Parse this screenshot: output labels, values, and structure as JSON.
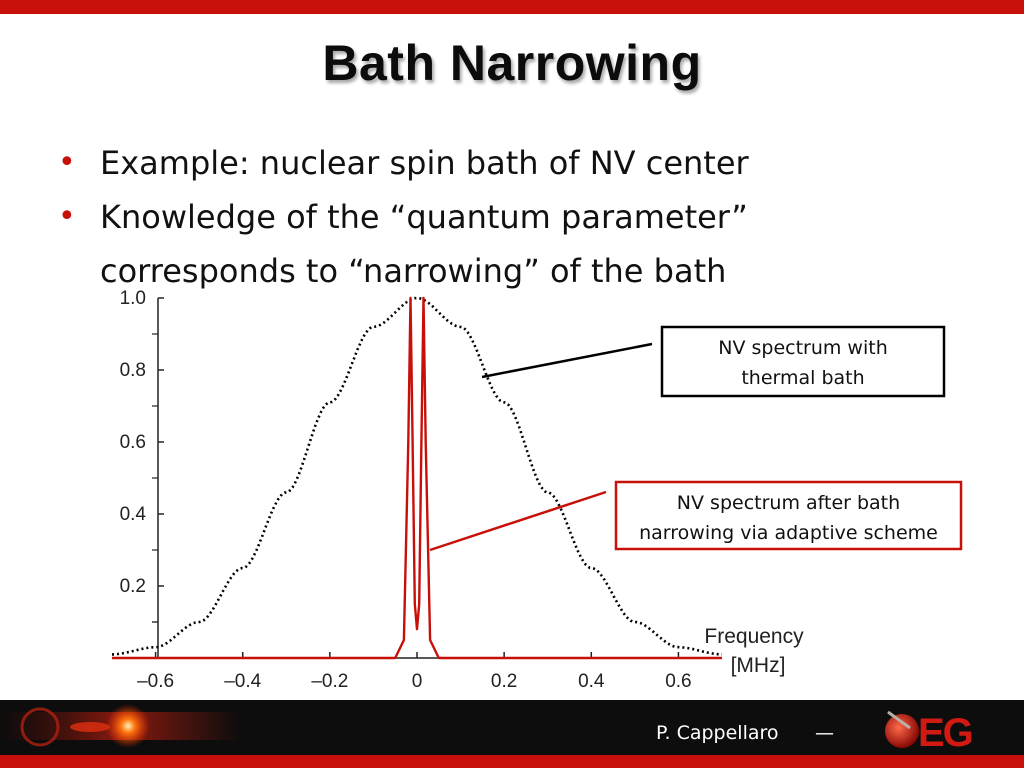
{
  "slide": {
    "title": "Bath Narrowing",
    "bullets": [
      "Example: nuclear spin bath of NV center",
      "Knowledge of the “quantum parameter” corresponds to “narrowing” of the bath"
    ],
    "footer_author": "P. Cappellaro",
    "footer_dash": "—",
    "logo_text": "EG"
  },
  "colors": {
    "accent_red": "#c8100a",
    "curve_red": "#c8100a",
    "thermal_curve": "#000000"
  },
  "chart_data": {
    "type": "line",
    "title": "",
    "xlabel": "Frequency [MHz]",
    "ylabel": "",
    "xlim": [
      -0.7,
      0.7
    ],
    "ylim": [
      0,
      1.0
    ],
    "x_ticks": [
      -0.6,
      -0.4,
      -0.2,
      0,
      0.2,
      0.4,
      0.6
    ],
    "x_tick_labels": [
      "–0.6",
      "–0.4",
      "–0.2",
      "0",
      "0.2",
      "0.4",
      "0.6"
    ],
    "y_ticks": [
      0.2,
      0.4,
      0.6,
      0.8,
      1.0
    ],
    "y_tick_labels": [
      "0.2",
      "0.4",
      "0.6",
      "0.8",
      "1.0"
    ],
    "grid": false,
    "series": [
      {
        "name": "NV spectrum with thermal bath",
        "style": "dotted",
        "x": [
          -0.7,
          -0.6,
          -0.5,
          -0.4,
          -0.3,
          -0.2,
          -0.1,
          0,
          0.1,
          0.2,
          0.3,
          0.4,
          0.5,
          0.6,
          0.7
        ],
        "y": [
          0.01,
          0.03,
          0.1,
          0.25,
          0.46,
          0.71,
          0.92,
          1.0,
          0.92,
          0.71,
          0.46,
          0.25,
          0.1,
          0.03,
          0.01
        ]
      },
      {
        "name": "NV spectrum after bath narrowing via adaptive scheme",
        "style": "solid",
        "x": [
          -0.7,
          -0.05,
          -0.03,
          -0.02,
          -0.015,
          -0.01,
          -0.005,
          0,
          0.005,
          0.01,
          0.015,
          0.02,
          0.03,
          0.05,
          0.7
        ],
        "y": [
          0.0,
          0.0,
          0.05,
          0.6,
          1.0,
          0.6,
          0.15,
          0.08,
          0.15,
          0.6,
          1.0,
          0.6,
          0.05,
          0.0,
          0.0
        ]
      }
    ],
    "annotations": [
      {
        "text_lines": [
          "NV spectrum with",
          "thermal bath"
        ],
        "target_series": 0,
        "box_color": "#000000"
      },
      {
        "text_lines": [
          "NV spectrum after bath",
          "narrowing via adaptive scheme"
        ],
        "target_series": 1,
        "box_color": "#c8100a"
      }
    ]
  }
}
